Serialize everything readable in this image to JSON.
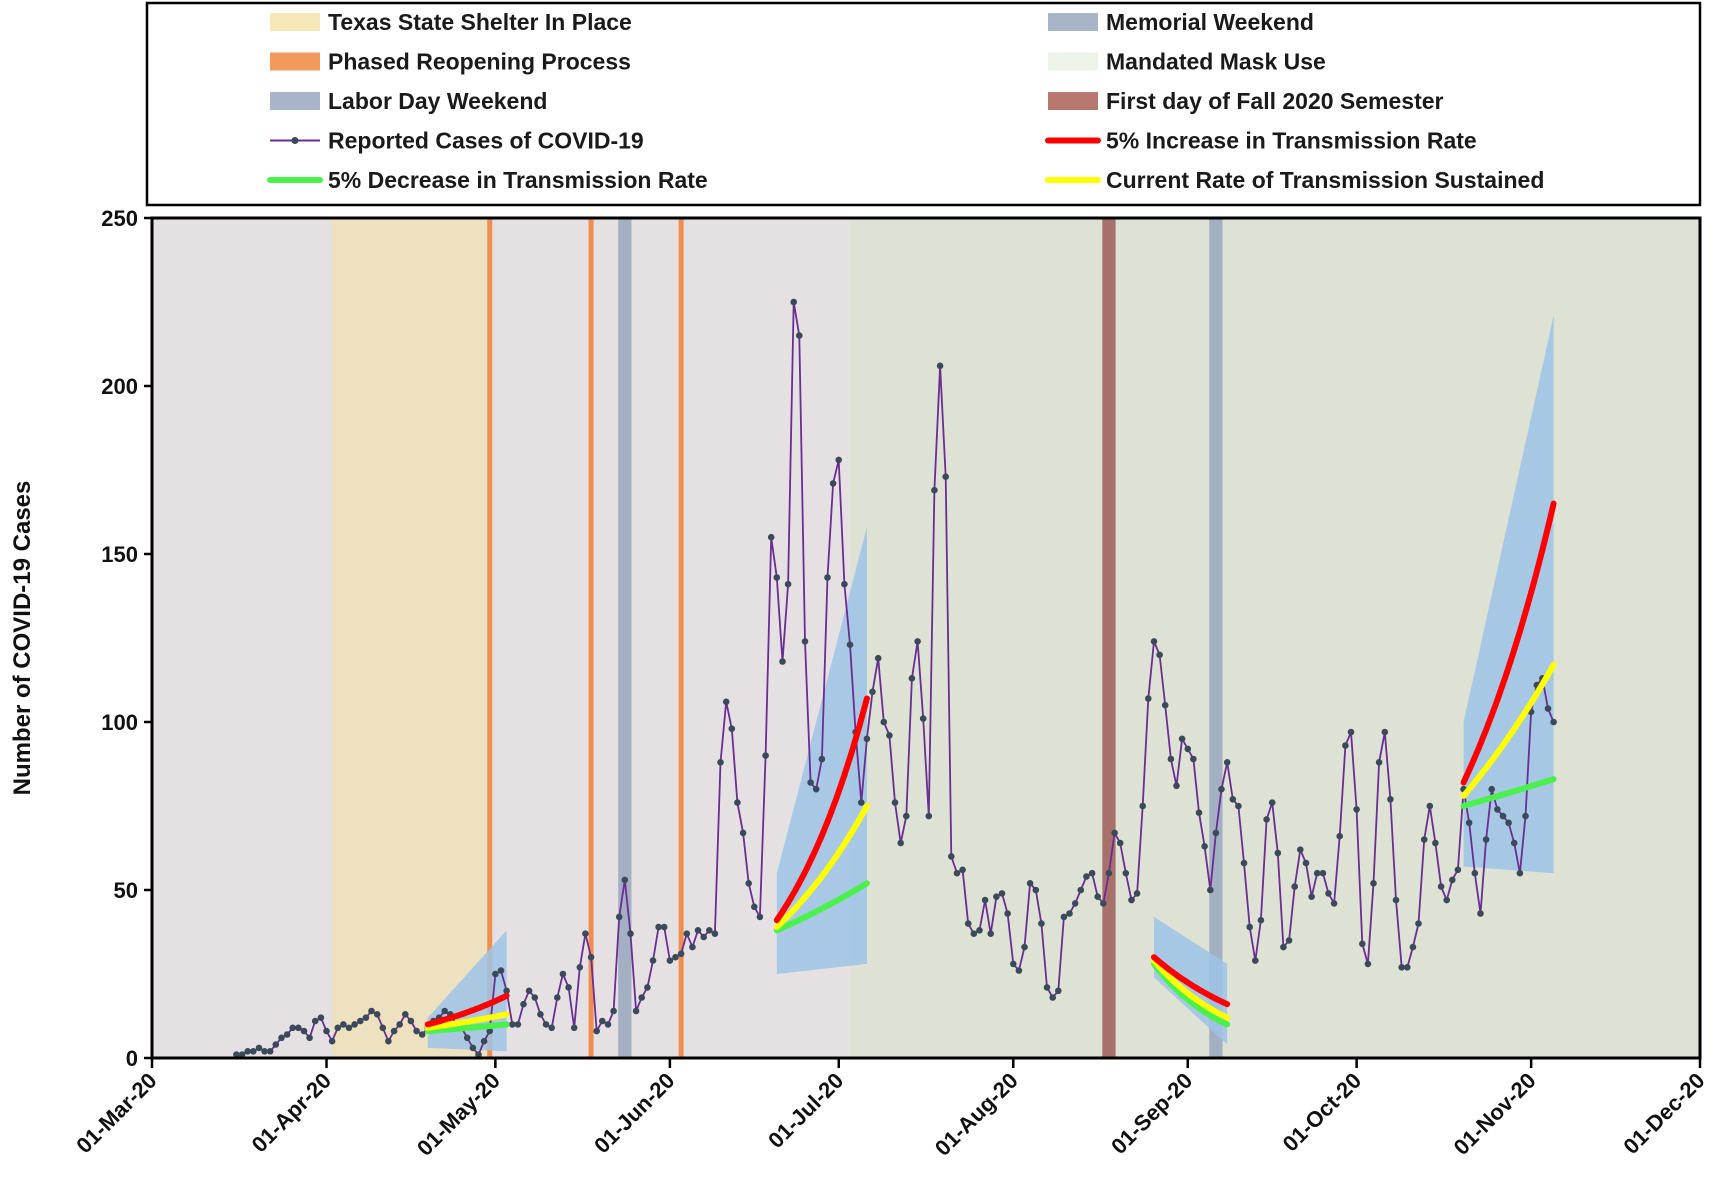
{
  "chart_data": {
    "type": "line",
    "title": "",
    "xlabel": "",
    "ylabel": "Number of COVID-19 Cases",
    "xlim": [
      "2020-03-01",
      "2020-12-01"
    ],
    "ylim": [
      0,
      250
    ],
    "x_ticks": [
      "01-Mar-20",
      "01-Apr-20",
      "01-May-20",
      "01-Jun-20",
      "01-Jul-20",
      "01-Aug-20",
      "01-Sep-20",
      "01-Oct-20",
      "01-Nov-20",
      "01-Dec-20"
    ],
    "y_ticks": [
      "0",
      "50",
      "100",
      "150",
      "200",
      "250"
    ],
    "grid": false,
    "legend_position": "top",
    "legend": [
      {
        "label": "Texas State Shelter In Place",
        "kind": "patch",
        "color": "#f6e7b8"
      },
      {
        "label": "Memorial Weekend",
        "kind": "patch",
        "color": "#a8b4c8"
      },
      {
        "label": "Phased Reopening Process",
        "kind": "patch",
        "color": "#f29a5c"
      },
      {
        "label": "Mandated Mask Use",
        "kind": "patch",
        "color": "#eef3ea"
      },
      {
        "label": "Labor Day Weekend",
        "kind": "patch",
        "color": "#a8b4c8"
      },
      {
        "label": "First day of Fall 2020 Semester",
        "kind": "patch",
        "color": "#b87870"
      },
      {
        "label": "Reported Cases of COVID-19",
        "kind": "marker-line",
        "color": "#6a2d91"
      },
      {
        "label": "5% Increase in Transmission Rate",
        "kind": "line",
        "color": "#ff0000"
      },
      {
        "label": "5% Decrease in Transmission Rate",
        "kind": "line",
        "color": "#4cf04c"
      },
      {
        "label": "Current Rate of Transmission Sustained",
        "kind": "line",
        "color": "#ffff00"
      }
    ],
    "colors": {
      "background": "#e5e1e3",
      "shelter_region": "#ede1bf",
      "mask_region": "#dde2d5",
      "reopening_line": "#f08d4f",
      "weekend_band": "#a3b0c4",
      "semester_band": "#a8706a",
      "uncertainty_band": "#9dc3e6",
      "cases_line": "#6a2d91",
      "cases_marker": "#3b4a5a",
      "increase": "#ff0000",
      "decrease": "#4cf04c",
      "current": "#ffff00"
    },
    "periods": {
      "shelter_in_place": [
        "2020-04-02",
        "2020-04-30"
      ],
      "mask_mandate": [
        "2020-07-03",
        "2020-12-01"
      ],
      "reopening_dates": [
        "2020-04-30",
        "2020-05-18",
        "2020-06-03"
      ],
      "memorial_weekend": [
        "2020-05-23",
        "2020-05-25"
      ],
      "labor_day_weekend": [
        "2020-09-05",
        "2020-09-07"
      ],
      "fall_semester_start": [
        "2020-08-17",
        "2020-08-19"
      ]
    },
    "series": [
      {
        "name": "Reported Cases of COVID-19",
        "start": "2020-03-16",
        "values": [
          1,
          1,
          2,
          2,
          3,
          2,
          2,
          4,
          6,
          7,
          9,
          9,
          8,
          6,
          11,
          12,
          8,
          5,
          9,
          10,
          9,
          10,
          11,
          12,
          14,
          13,
          9,
          5,
          8,
          10,
          13,
          11,
          8,
          7,
          9,
          11,
          12,
          14,
          13,
          10,
          9,
          6,
          3,
          1,
          5,
          8,
          25,
          26,
          20,
          10,
          10,
          16,
          20,
          18,
          13,
          10,
          9,
          18,
          25,
          21,
          9,
          27,
          37,
          30,
          8,
          11,
          10,
          14,
          42,
          53,
          37,
          14,
          18,
          21,
          29,
          39,
          39,
          29,
          30,
          31,
          37,
          33,
          38,
          36,
          38,
          37,
          88,
          106,
          98,
          76,
          67,
          52,
          45,
          42,
          90,
          155,
          143,
          118,
          141,
          225,
          215,
          124,
          82,
          80,
          89,
          143,
          171,
          178,
          141,
          123,
          97,
          76,
          95,
          109,
          119,
          100,
          96,
          76,
          64,
          72,
          113,
          124,
          101,
          72,
          169,
          206,
          173,
          60,
          55,
          56,
          40,
          37,
          38,
          47,
          37,
          48,
          49,
          43,
          28,
          26,
          33,
          52,
          50,
          40,
          21,
          18,
          20,
          42,
          43,
          46,
          50,
          54,
          55,
          48,
          46,
          55,
          67,
          64,
          55,
          47,
          49,
          75,
          107,
          124,
          120,
          105,
          89,
          81,
          95,
          92,
          89,
          73,
          63,
          50,
          67,
          80,
          88,
          77,
          75,
          58,
          39,
          29,
          41,
          71,
          76,
          61,
          33,
          35,
          51,
          62,
          58,
          48,
          55,
          55,
          49,
          46,
          66,
          93,
          97,
          74,
          34,
          28,
          52,
          88,
          97,
          77,
          47,
          27,
          27,
          33,
          40,
          65,
          75,
          64,
          51,
          47,
          53,
          56,
          80,
          70,
          55,
          43,
          65,
          80,
          74,
          72,
          70,
          64,
          55,
          72,
          103,
          111,
          113,
          104,
          100
        ]
      },
      {
        "name": "5% Increase in Transmission Rate",
        "segments": [
          {
            "x": [
              "2020-04-19",
              "2020-05-03"
            ],
            "y": [
              10,
              18.5
            ]
          },
          {
            "x": [
              "2020-06-20",
              "2020-07-06"
            ],
            "y": [
              41,
              107
            ]
          },
          {
            "x": [
              "2020-08-26",
              "2020-09-08"
            ],
            "y": [
              30,
              16
            ]
          },
          {
            "x": [
              "2020-10-20",
              "2020-11-05"
            ],
            "y": [
              82,
              165
            ]
          }
        ]
      },
      {
        "name": "Current Rate of Transmission Sustained",
        "segments": [
          {
            "x": [
              "2020-04-19",
              "2020-05-03"
            ],
            "y": [
              9,
              13
            ]
          },
          {
            "x": [
              "2020-06-20",
              "2020-07-06"
            ],
            "y": [
              39,
              75
            ]
          },
          {
            "x": [
              "2020-08-26",
              "2020-09-08"
            ],
            "y": [
              29,
              12
            ]
          },
          {
            "x": [
              "2020-10-20",
              "2020-11-05"
            ],
            "y": [
              78,
              117
            ]
          }
        ]
      },
      {
        "name": "5% Decrease in Transmission Rate",
        "segments": [
          {
            "x": [
              "2020-04-19",
              "2020-05-03"
            ],
            "y": [
              8,
              10
            ]
          },
          {
            "x": [
              "2020-06-20",
              "2020-07-06"
            ],
            "y": [
              38,
              52
            ]
          },
          {
            "x": [
              "2020-08-26",
              "2020-09-08"
            ],
            "y": [
              28,
              10
            ]
          },
          {
            "x": [
              "2020-10-20",
              "2020-11-05"
            ],
            "y": [
              75,
              83
            ]
          }
        ]
      }
    ],
    "uncertainty_bands": [
      {
        "x": [
          "2020-04-19",
          "2020-05-03"
        ],
        "lower_start": 3,
        "lower_end": 2,
        "upper_start": 12,
        "upper_end": 38
      },
      {
        "x": [
          "2020-06-20",
          "2020-07-06"
        ],
        "lower_start": 25,
        "lower_end": 28,
        "upper_start": 55,
        "upper_end": 158
      },
      {
        "x": [
          "2020-08-26",
          "2020-09-08"
        ],
        "lower_start": 24,
        "lower_end": 4,
        "upper_start": 42,
        "upper_end": 28
      },
      {
        "x": [
          "2020-10-20",
          "2020-11-05"
        ],
        "lower_start": 57,
        "lower_end": 55,
        "upper_start": 100,
        "upper_end": 221
      }
    ]
  }
}
